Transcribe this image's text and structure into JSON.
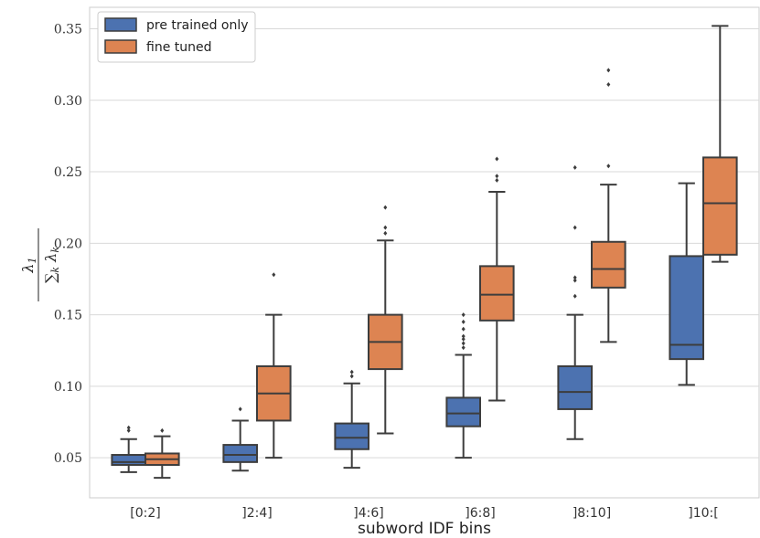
{
  "chart_data": {
    "type": "box",
    "xlabel": "subword IDF bins",
    "ylabel": "λ1 / Σk λk",
    "ylim": [
      0.022,
      0.365
    ],
    "yticks": [
      0.05,
      0.1,
      0.15,
      0.2,
      0.25,
      0.3,
      0.35
    ],
    "ytick_labels": [
      "0.05",
      "0.10",
      "0.15",
      "0.20",
      "0.25",
      "0.30",
      "0.35"
    ],
    "categories": [
      "[0:2]",
      "]2:4]",
      "]4:6]",
      "]6:8]",
      "]8:10]",
      "]10:["
    ],
    "grid": true,
    "legend_position": "top-left",
    "series": [
      {
        "name": "pre trained only",
        "color": "#4c72b0",
        "boxes": [
          {
            "whisker_low": 0.04,
            "q1": 0.045,
            "median": 0.047,
            "q3": 0.052,
            "whisker_high": 0.063,
            "outliers": [
              0.069,
              0.071
            ]
          },
          {
            "whisker_low": 0.041,
            "q1": 0.047,
            "median": 0.052,
            "q3": 0.059,
            "whisker_high": 0.076,
            "outliers": [
              0.084
            ]
          },
          {
            "whisker_low": 0.043,
            "q1": 0.056,
            "median": 0.064,
            "q3": 0.074,
            "whisker_high": 0.102,
            "outliers": [
              0.107,
              0.11
            ]
          },
          {
            "whisker_low": 0.05,
            "q1": 0.072,
            "median": 0.081,
            "q3": 0.092,
            "whisker_high": 0.122,
            "outliers": [
              0.127,
              0.13,
              0.133,
              0.135,
              0.14,
              0.145,
              0.15
            ]
          },
          {
            "whisker_low": 0.063,
            "q1": 0.084,
            "median": 0.096,
            "q3": 0.114,
            "whisker_high": 0.15,
            "outliers": [
              0.163,
              0.174,
              0.176,
              0.211,
              0.253
            ]
          },
          {
            "whisker_low": 0.101,
            "q1": 0.119,
            "median": 0.129,
            "q3": 0.191,
            "whisker_high": 0.242,
            "outliers": []
          }
        ]
      },
      {
        "name": "fine tuned",
        "color": "#dd8452",
        "boxes": [
          {
            "whisker_low": 0.036,
            "q1": 0.045,
            "median": 0.049,
            "q3": 0.053,
            "whisker_high": 0.065,
            "outliers": [
              0.069
            ]
          },
          {
            "whisker_low": 0.05,
            "q1": 0.076,
            "median": 0.095,
            "q3": 0.114,
            "whisker_high": 0.15,
            "outliers": [
              0.178
            ]
          },
          {
            "whisker_low": 0.067,
            "q1": 0.112,
            "median": 0.131,
            "q3": 0.15,
            "whisker_high": 0.202,
            "outliers": [
              0.207,
              0.211,
              0.225
            ]
          },
          {
            "whisker_low": 0.09,
            "q1": 0.146,
            "median": 0.164,
            "q3": 0.184,
            "whisker_high": 0.236,
            "outliers": [
              0.244,
              0.247,
              0.259
            ]
          },
          {
            "whisker_low": 0.131,
            "q1": 0.169,
            "median": 0.182,
            "q3": 0.201,
            "whisker_high": 0.241,
            "outliers": [
              0.254,
              0.311,
              0.321
            ]
          },
          {
            "whisker_low": 0.187,
            "q1": 0.192,
            "median": 0.228,
            "q3": 0.26,
            "whisker_high": 0.352,
            "outliers": []
          }
        ]
      }
    ]
  }
}
